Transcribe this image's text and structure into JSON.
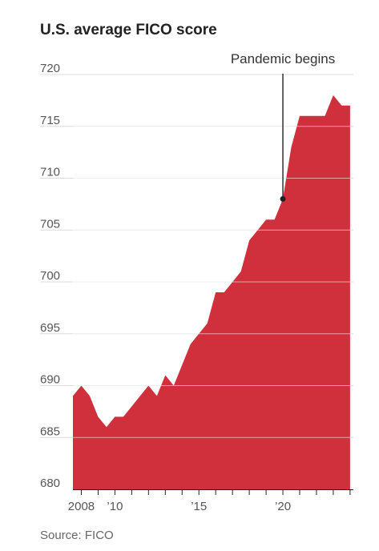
{
  "source": "Source: FICO",
  "colors": {
    "area": "#d0303b",
    "grid": "#dcdcdc",
    "axis": "#222222",
    "text": "#555555"
  },
  "chart_data": {
    "type": "area",
    "title": "U.S. average FICO score",
    "xlabel": "",
    "ylabel": "",
    "ylim": [
      680,
      720
    ],
    "xlim": [
      2007.5,
      2024.1
    ],
    "yticks": [
      "720",
      "715",
      "710",
      "705",
      "700",
      "695",
      "690",
      "685",
      "680"
    ],
    "xticks": [
      {
        "x": 2008,
        "label": "2008"
      },
      {
        "x": 2010,
        "label": "’10"
      },
      {
        "x": 2015,
        "label": "’15"
      },
      {
        "x": 2020,
        "label": "’20"
      }
    ],
    "grid": true,
    "x": [
      2007.5,
      2008.0,
      2008.5,
      2009.0,
      2009.5,
      2010.0,
      2010.5,
      2011.0,
      2011.5,
      2012.0,
      2012.5,
      2013.0,
      2013.5,
      2014.0,
      2014.5,
      2015.0,
      2015.5,
      2016.0,
      2016.5,
      2017.0,
      2017.5,
      2018.0,
      2018.5,
      2019.0,
      2019.5,
      2020.0,
      2020.5,
      2021.0,
      2021.5,
      2022.0,
      2022.5,
      2023.0,
      2023.5,
      2024.0
    ],
    "values": [
      689,
      690,
      689,
      687,
      686,
      687,
      687,
      688,
      689,
      690,
      689,
      691,
      690,
      692,
      694,
      695,
      696,
      699,
      699,
      700,
      701,
      704,
      705,
      706,
      706,
      708,
      713,
      716,
      716,
      716,
      716,
      718,
      717,
      717
    ],
    "annotation": {
      "text": "Pandemic begins",
      "x": 2020.0,
      "y": 708
    }
  }
}
